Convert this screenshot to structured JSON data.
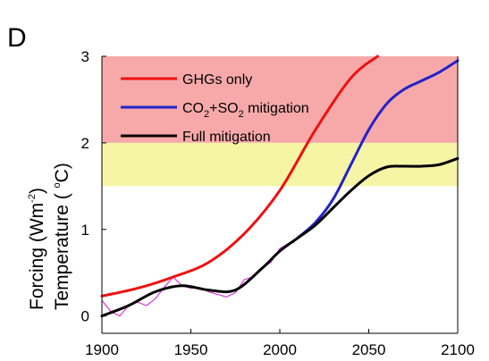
{
  "chart_data": {
    "type": "line",
    "panel_label": "D",
    "ylabel_line1": "Forcing (Wm",
    "ylabel_line1_sup": "-2",
    "ylabel_line1_end": ")",
    "ylabel_line2": "Temperature ( ",
    "ylabel_line2_sup": "o",
    "ylabel_line2_end": "C)",
    "xlim": [
      1900,
      2100
    ],
    "ylim": [
      -0.2,
      3.0
    ],
    "x_ticks": [
      1900,
      1950,
      2000,
      2050,
      2100
    ],
    "x_tick_labels": [
      "1900",
      "1950",
      "2000",
      "2050",
      "2100"
    ],
    "y_ticks": [
      0,
      1,
      2,
      3
    ],
    "y_tick_labels": [
      "0",
      "1",
      "2",
      "3"
    ],
    "bands": [
      {
        "y_from": 2.0,
        "y_to": 3.0,
        "color": "#f7a9a9"
      },
      {
        "y_from": 1.5,
        "y_to": 2.0,
        "color": "#f6f5a5"
      }
    ],
    "legend_position": "top-center",
    "series": [
      {
        "name": "GHGs only",
        "color": "#ee1111",
        "x": [
          1900,
          1920,
          1940,
          1960,
          1980,
          2000,
          2020,
          2040,
          2055
        ],
        "values": [
          0.23,
          0.32,
          0.45,
          0.62,
          0.95,
          1.45,
          2.15,
          2.75,
          3.0
        ]
      },
      {
        "name": "CO2+SO2 mitigation",
        "name_parts": [
          "CO",
          "2",
          "+SO",
          "2",
          " mitigation"
        ],
        "color": "#2222cc",
        "x": [
          2010,
          2020,
          2030,
          2040,
          2050,
          2060,
          2070,
          2080,
          2090,
          2100
        ],
        "values": [
          0.9,
          1.08,
          1.35,
          1.75,
          2.15,
          2.45,
          2.62,
          2.72,
          2.82,
          2.95
        ]
      },
      {
        "name": "Full mitigation",
        "color": "#000000",
        "x": [
          1900,
          1915,
          1930,
          1945,
          1960,
          1975,
          1990,
          2000,
          2010,
          2020,
          2030,
          2040,
          2050,
          2060,
          2070,
          2080,
          2090,
          2100
        ],
        "values": [
          0.0,
          0.12,
          0.28,
          0.35,
          0.3,
          0.3,
          0.55,
          0.75,
          0.9,
          1.05,
          1.25,
          1.45,
          1.62,
          1.72,
          1.73,
          1.73,
          1.75,
          1.82
        ]
      },
      {
        "color": "#dd33dd",
        "x": [
          1900,
          1905,
          1910,
          1915,
          1920,
          1925,
          1930,
          1935,
          1940,
          1945,
          1950,
          1955,
          1960,
          1965,
          1970,
          1975,
          1980,
          1985,
          1990,
          1995,
          2000,
          2005,
          2008
        ],
        "values": [
          0.18,
          0.05,
          0.0,
          0.12,
          0.16,
          0.12,
          0.2,
          0.33,
          0.45,
          0.35,
          0.32,
          0.33,
          0.28,
          0.25,
          0.22,
          0.27,
          0.42,
          0.45,
          0.55,
          0.62,
          0.78,
          0.84,
          0.85
        ]
      }
    ]
  }
}
